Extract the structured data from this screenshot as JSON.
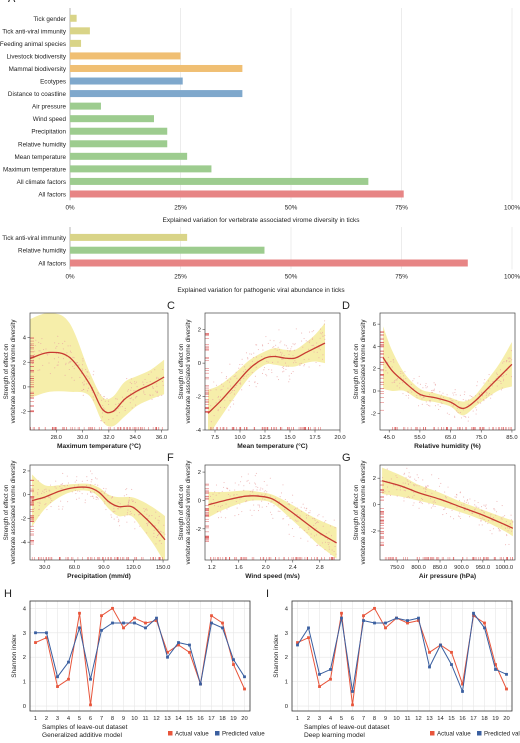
{
  "chart_data": [
    {
      "panel": "A",
      "type": "bar",
      "orientation": "horizontal",
      "categories": [
        "Tick gender",
        "Tick anti-viral immunity",
        "Feeding animal species",
        "Livestock biodiversity",
        "Mammal biodiversity",
        "Ecotypes",
        "Distance to coastline",
        "Air pressure",
        "Wind speed",
        "Precipitation",
        "Relative humidity",
        "Mean temperature",
        "Maximum temperature",
        "All climate factors",
        "All factors"
      ],
      "values": [
        1.5,
        4.5,
        2.5,
        25,
        39,
        25.5,
        39,
        7,
        19,
        22,
        22,
        26.5,
        32,
        67.5,
        75.5
      ],
      "bar_colors": [
        "#d9d488",
        "#d9d488",
        "#d9d488",
        "#f0bf73",
        "#f0bf73",
        "#7fa8cc",
        "#7fa8cc",
        "#9dcc8f",
        "#9dcc8f",
        "#9dcc8f",
        "#9dcc8f",
        "#9dcc8f",
        "#9dcc8f",
        "#9dcc8f",
        "#e78585"
      ],
      "xlim": [
        0,
        100
      ],
      "xticks": [
        "0%",
        "25%",
        "50%",
        "75%",
        "100%"
      ],
      "xlabel": "Explained variation for vertebrate associated virome diversity in ticks"
    },
    {
      "panel": "A2",
      "type": "bar",
      "orientation": "horizontal",
      "categories": [
        "Tick anti-viral immunity",
        "Relative humidity",
        "All factors"
      ],
      "values": [
        26.5,
        44,
        90
      ],
      "bar_colors": [
        "#d9d488",
        "#9dcc8f",
        "#e78585"
      ],
      "xlim": [
        0,
        100
      ],
      "xticks": [
        "0%",
        "25%",
        "50%",
        "75%",
        "100%"
      ],
      "xlabel": "Explained variation for pathogenic viral abundance in ticks"
    },
    {
      "panel": "B",
      "type": "line",
      "xlabel": "Maximum temperature (°C)",
      "ylabel": [
        "Strength of effect on",
        "vertebrate associated virome diversity"
      ],
      "xlim": [
        26,
        36.5
      ],
      "ylim": [
        -3.5,
        6
      ],
      "xticks": [
        28.0,
        30.0,
        32.0,
        34.0,
        36.0
      ],
      "yticks": [
        -2,
        0,
        2,
        4
      ],
      "x": [
        26,
        27.5,
        29,
        30.5,
        31.5,
        32.3,
        33.2,
        34.2,
        35.2,
        36.2
      ],
      "y": [
        2.3,
        2.8,
        2.4,
        0.3,
        -1.8,
        -2.0,
        -1.0,
        -0.3,
        0.2,
        0.8
      ],
      "band": [
        3.2,
        3.2,
        2.8,
        1.0,
        1.0,
        1.2,
        1.4,
        1.2,
        1.2,
        1.4
      ]
    },
    {
      "panel": "C",
      "type": "line",
      "xlabel": "Mean temperature (°C)",
      "ylabel": [
        "Strength of effect on",
        "vertebrate associated virome diversity"
      ],
      "xlim": [
        6.5,
        20
      ],
      "ylim": [
        -4,
        3
      ],
      "xticks": [
        7.5,
        10.0,
        12.5,
        15.0,
        17.5,
        20.0
      ],
      "yticks": [
        -4,
        -2,
        0,
        2
      ],
      "x": [
        6.8,
        8,
        9.5,
        11,
        12.5,
        13.5,
        14.5,
        15.5,
        16.5,
        17.5,
        18.5
      ],
      "y": [
        -3.0,
        -2.3,
        -1.3,
        -0.3,
        0.3,
        0.4,
        0.3,
        0.3,
        0.6,
        0.9,
        1.2
      ],
      "band": [
        1.4,
        1.0,
        0.7,
        0.5,
        0.4,
        0.5,
        0.5,
        0.5,
        0.6,
        0.8,
        1.2
      ]
    },
    {
      "panel": "D",
      "type": "line",
      "xlabel": "Relative humidity (%)",
      "ylabel": [
        "Strength of effect on",
        "vertebrate associated virome diversity"
      ],
      "xlim": [
        42,
        86
      ],
      "ylim": [
        -3.5,
        7
      ],
      "xticks": [
        45.0,
        55.0,
        65.0,
        75.0,
        85.0
      ],
      "yticks": [
        -2,
        0,
        2,
        4,
        6
      ],
      "x": [
        43,
        46,
        50,
        55,
        60,
        65,
        68,
        70,
        73,
        77,
        81,
        85
      ],
      "y": [
        3.0,
        1.8,
        0.8,
        -0.3,
        -0.6,
        -1.0,
        -1.5,
        -1.5,
        -0.9,
        0.2,
        1.3,
        2.4
      ],
      "band": [
        2.8,
        1.8,
        0.8,
        0.5,
        0.4,
        0.4,
        0.6,
        0.6,
        0.5,
        0.8,
        1.2,
        2.0
      ]
    },
    {
      "panel": "E",
      "type": "line",
      "xlabel": "Precipitation (mm/d)",
      "ylabel": [
        "Strength of effect on",
        "vertebrate associated virome diversity"
      ],
      "xlim": [
        15,
        155
      ],
      "ylim": [
        -5.5,
        2.5
      ],
      "xticks": [
        30.0,
        60.0,
        90.0,
        120.0,
        150.0
      ],
      "yticks": [
        -4,
        -2,
        0,
        2
      ],
      "x": [
        17,
        30,
        45,
        60,
        75,
        85,
        95,
        105,
        118,
        130,
        142,
        152
      ],
      "y": [
        -0.5,
        -0.2,
        0.3,
        0.6,
        0.6,
        0.2,
        -0.6,
        -1.0,
        -1.0,
        -1.8,
        -2.8,
        -3.8
      ],
      "band": [
        2.2,
        1.0,
        0.5,
        0.3,
        0.3,
        0.4,
        0.6,
        0.8,
        0.8,
        1.2,
        1.6,
        2.0
      ]
    },
    {
      "panel": "F",
      "type": "line",
      "xlabel": "Wind speed (m/s)",
      "ylabel": [
        "Strength of effect on",
        "vertebrate associated virome diversity"
      ],
      "xlim": [
        1.1,
        3.1
      ],
      "ylim": [
        -4.2,
        2.5
      ],
      "xticks": [
        1.2,
        1.6,
        2.0,
        2.4,
        2.8
      ],
      "yticks": [
        -2,
        0,
        2
      ],
      "x": [
        1.15,
        1.4,
        1.7,
        1.9,
        2.1,
        2.35,
        2.6,
        2.8,
        3.05
      ],
      "y": [
        -0.3,
        0.0,
        0.3,
        0.3,
        0.1,
        -0.7,
        -1.6,
        -2.3,
        -3.0
      ],
      "band": [
        0.9,
        0.6,
        0.4,
        0.3,
        0.3,
        0.5,
        0.7,
        0.9,
        1.1
      ]
    },
    {
      "panel": "G",
      "type": "line",
      "xlabel": "Air pressure (hPa)",
      "ylabel": [
        "Strength of effect on",
        "vertebrate associated virome diversity"
      ],
      "xlim": [
        710,
        1025
      ],
      "ylim": [
        -4.2,
        3
      ],
      "xticks": [
        750.0,
        800.0,
        850.0,
        900.0,
        950.0,
        1000.0
      ],
      "yticks": [
        -2,
        0,
        2
      ],
      "x": [
        715,
        760,
        800,
        850,
        900,
        950,
        1000,
        1020
      ],
      "y": [
        1.8,
        1.4,
        0.9,
        0.4,
        -0.2,
        -0.8,
        -1.5,
        -1.8
      ],
      "band": [
        1.0,
        0.8,
        0.6,
        0.5,
        0.4,
        0.4,
        0.5,
        0.6
      ]
    },
    {
      "panel": "H",
      "type": "line",
      "xlabel": [
        "Samples of leave-out dataset",
        "Generalized additive model"
      ],
      "ylabel": "Shannon index",
      "xlim": [
        0.5,
        20.5
      ],
      "ylim": [
        -0.2,
        4.3
      ],
      "xticks": [
        1,
        2,
        3,
        4,
        5,
        6,
        7,
        8,
        9,
        10,
        11,
        12,
        13,
        14,
        15,
        16,
        17,
        18,
        19,
        20
      ],
      "yticks": [
        0,
        1,
        2,
        3,
        4
      ],
      "series": [
        {
          "name": "Actual value",
          "color": "#e8553b",
          "values": [
            2.6,
            2.8,
            0.8,
            1.1,
            3.8,
            0.05,
            3.7,
            4.0,
            3.2,
            3.6,
            3.4,
            3.5,
            2.2,
            2.5,
            2.2,
            0.9,
            3.7,
            3.4,
            1.7,
            0.7
          ]
        },
        {
          "name": "Predicted value",
          "color": "#3a5fa0",
          "values": [
            3.0,
            3.0,
            1.2,
            1.8,
            3.2,
            1.1,
            3.1,
            3.4,
            3.4,
            3.4,
            3.2,
            3.6,
            2.0,
            2.6,
            2.5,
            0.9,
            3.4,
            3.2,
            1.9,
            1.2
          ]
        }
      ]
    },
    {
      "panel": "I",
      "type": "line",
      "xlabel": [
        "Samples of leave-out dataset",
        "Deep learning model"
      ],
      "ylabel": "Shannon index",
      "xlim": [
        0.5,
        20.5
      ],
      "ylim": [
        -0.2,
        4.3
      ],
      "xticks": [
        1,
        2,
        3,
        4,
        5,
        6,
        7,
        8,
        9,
        10,
        11,
        12,
        13,
        14,
        15,
        16,
        17,
        18,
        19,
        20
      ],
      "yticks": [
        0,
        1,
        2,
        3,
        4
      ],
      "series": [
        {
          "name": "Actual value",
          "color": "#e8553b",
          "values": [
            2.6,
            2.8,
            0.8,
            1.1,
            3.8,
            0.05,
            3.7,
            4.0,
            3.2,
            3.6,
            3.4,
            3.5,
            2.2,
            2.5,
            2.2,
            0.9,
            3.7,
            3.4,
            1.7,
            0.7
          ]
        },
        {
          "name": "Predicted value",
          "color": "#3a5fa0",
          "values": [
            2.5,
            3.2,
            1.3,
            1.5,
            3.6,
            0.6,
            3.5,
            3.4,
            3.4,
            3.6,
            3.5,
            3.6,
            1.6,
            2.5,
            1.7,
            0.6,
            3.8,
            3.2,
            1.5,
            1.3
          ]
        }
      ]
    }
  ]
}
